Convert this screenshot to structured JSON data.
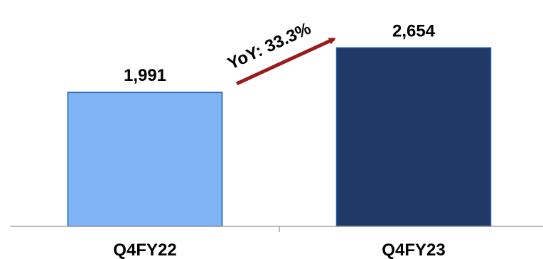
{
  "chart_data": {
    "type": "bar",
    "categories": [
      "Q4FY22",
      "Q4FY23"
    ],
    "series": [
      {
        "values": [
          1991,
          2654
        ],
        "data_labels": [
          "1,991",
          "2,654"
        ],
        "colors": [
          "#7EB3F6",
          "#213966"
        ],
        "border_color": "#1F5FA8"
      }
    ],
    "ylim": [
      0,
      2900
    ],
    "grid": false,
    "legend": "none",
    "annotation": {
      "text": "YoY: 33.3%",
      "from_category": "Q4FY22",
      "to_category": "Q4FY23",
      "arrow_color": "#9B1B1B"
    },
    "axis_color": "#A6A6A6"
  }
}
